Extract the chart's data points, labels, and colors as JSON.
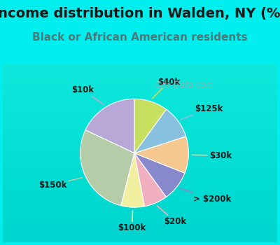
{
  "title": "Income distribution in Walden, NY (%)",
  "subtitle": "Black or African American residents",
  "title_color": "#1a1a1a",
  "subtitle_color": "#4a7a7a",
  "background_color": "#00EEEE",
  "chart_bg_top": "#f0f8f0",
  "chart_bg_bottom": "#d0ede0",
  "watermark": "City-Data.com",
  "labels": [
    "$10k",
    "$150k",
    "$100k",
    "$20k",
    "> $200k",
    "$30k",
    "$125k",
    "$40k"
  ],
  "values": [
    18,
    28,
    7,
    7,
    9,
    11,
    10,
    10
  ],
  "colors": [
    "#b8a8d8",
    "#b5cca8",
    "#f0f0a0",
    "#f0b0c0",
    "#8888cc",
    "#f5c890",
    "#88c0e0",
    "#c8e060"
  ],
  "startangle": 90,
  "label_fontsize": 8.5,
  "title_fontsize": 14,
  "subtitle_fontsize": 11
}
